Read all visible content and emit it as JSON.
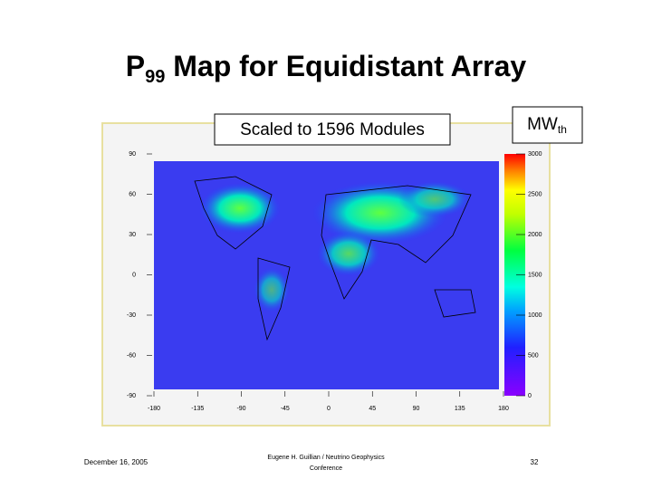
{
  "header": {
    "title_main": "P",
    "title_sub": "99",
    "title_rest": " Map for Equidistant Array"
  },
  "map": {
    "note": "Scaled to 1596 Modules",
    "unit_main": "MW",
    "unit_sub": "th",
    "y_ticks": [
      90,
      60,
      30,
      0,
      -30,
      -60,
      -90
    ],
    "x_ticks": [
      -180,
      -135,
      -90,
      -45,
      0,
      45,
      90,
      135,
      180
    ],
    "colorbar_ticks": [
      0,
      500,
      1000,
      1500,
      2000,
      2500,
      3000
    ]
  },
  "footer": {
    "date": "December 16, 2005",
    "author_line1": "Eugene H. Guillian / Neutrino Geophysics",
    "author_line2": "Conference",
    "page": "32"
  }
}
